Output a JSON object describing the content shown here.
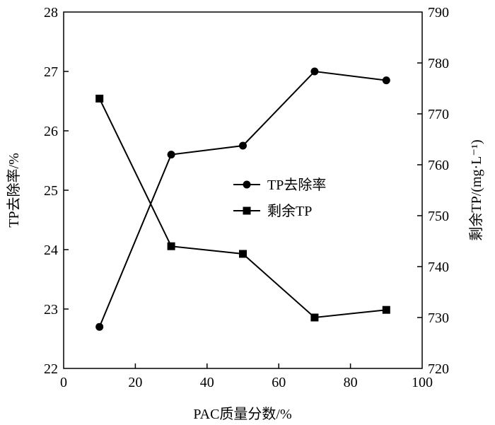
{
  "chart_data": {
    "type": "line",
    "xlabel": "PAC质量分数/%",
    "ylabel_left": "TP去除率/%",
    "ylabel_right": "剩余TP/(mg·L⁻¹)",
    "xlim": [
      0,
      100
    ],
    "ylim_left": [
      22,
      28
    ],
    "ylim_right": [
      720,
      790
    ],
    "x_ticks": [
      0,
      20,
      40,
      60,
      80,
      100
    ],
    "y_ticks_left": [
      22,
      23,
      24,
      25,
      26,
      27,
      28
    ],
    "y_ticks_right": [
      720,
      730,
      740,
      750,
      760,
      770,
      780,
      790
    ],
    "x": [
      10,
      30,
      50,
      70,
      90
    ],
    "series": [
      {
        "name": "TP去除率",
        "axis": "left",
        "marker": "circle",
        "values": [
          22.7,
          25.6,
          25.75,
          27.0,
          26.85
        ]
      },
      {
        "name": "剩余TP",
        "axis": "right",
        "marker": "square",
        "values": [
          773,
          744,
          742.5,
          730,
          731.5
        ]
      }
    ],
    "legend_position": "center-right",
    "grid": false
  }
}
